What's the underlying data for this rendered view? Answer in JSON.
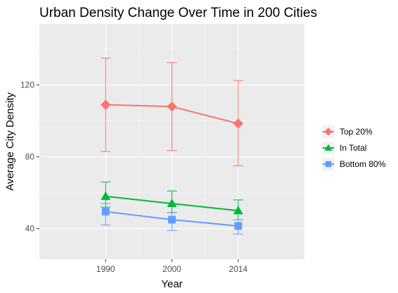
{
  "chart_data": {
    "type": "line",
    "title": "Urban Density Change Over Time in 200 Cities",
    "xlabel": "Year",
    "ylabel": "Average City Density",
    "categories": [
      "1990",
      "2000",
      "2014"
    ],
    "ylim": [
      23,
      154
    ],
    "yticks": [
      40,
      80,
      120
    ],
    "grid": true,
    "legend_position": "right",
    "series": [
      {
        "name": "Top 20%",
        "color": "#F8766D",
        "marker": "diamond",
        "values": [
          109,
          108,
          98.5
        ],
        "error_low": [
          83,
          83.5,
          75
        ],
        "error_high": [
          135,
          132.5,
          122.5
        ]
      },
      {
        "name": "In Total",
        "color": "#00BA38",
        "marker": "triangle",
        "values": [
          58,
          54,
          50
        ],
        "error_low": [
          52,
          49,
          45
        ],
        "error_high": [
          66,
          61,
          56
        ]
      },
      {
        "name": "Bottom 80%",
        "color": "#619CFF",
        "marker": "square",
        "values": [
          49.5,
          45,
          41.5
        ],
        "error_low": [
          42,
          39,
          37
        ],
        "error_high": [
          54,
          49,
          45
        ]
      }
    ]
  }
}
